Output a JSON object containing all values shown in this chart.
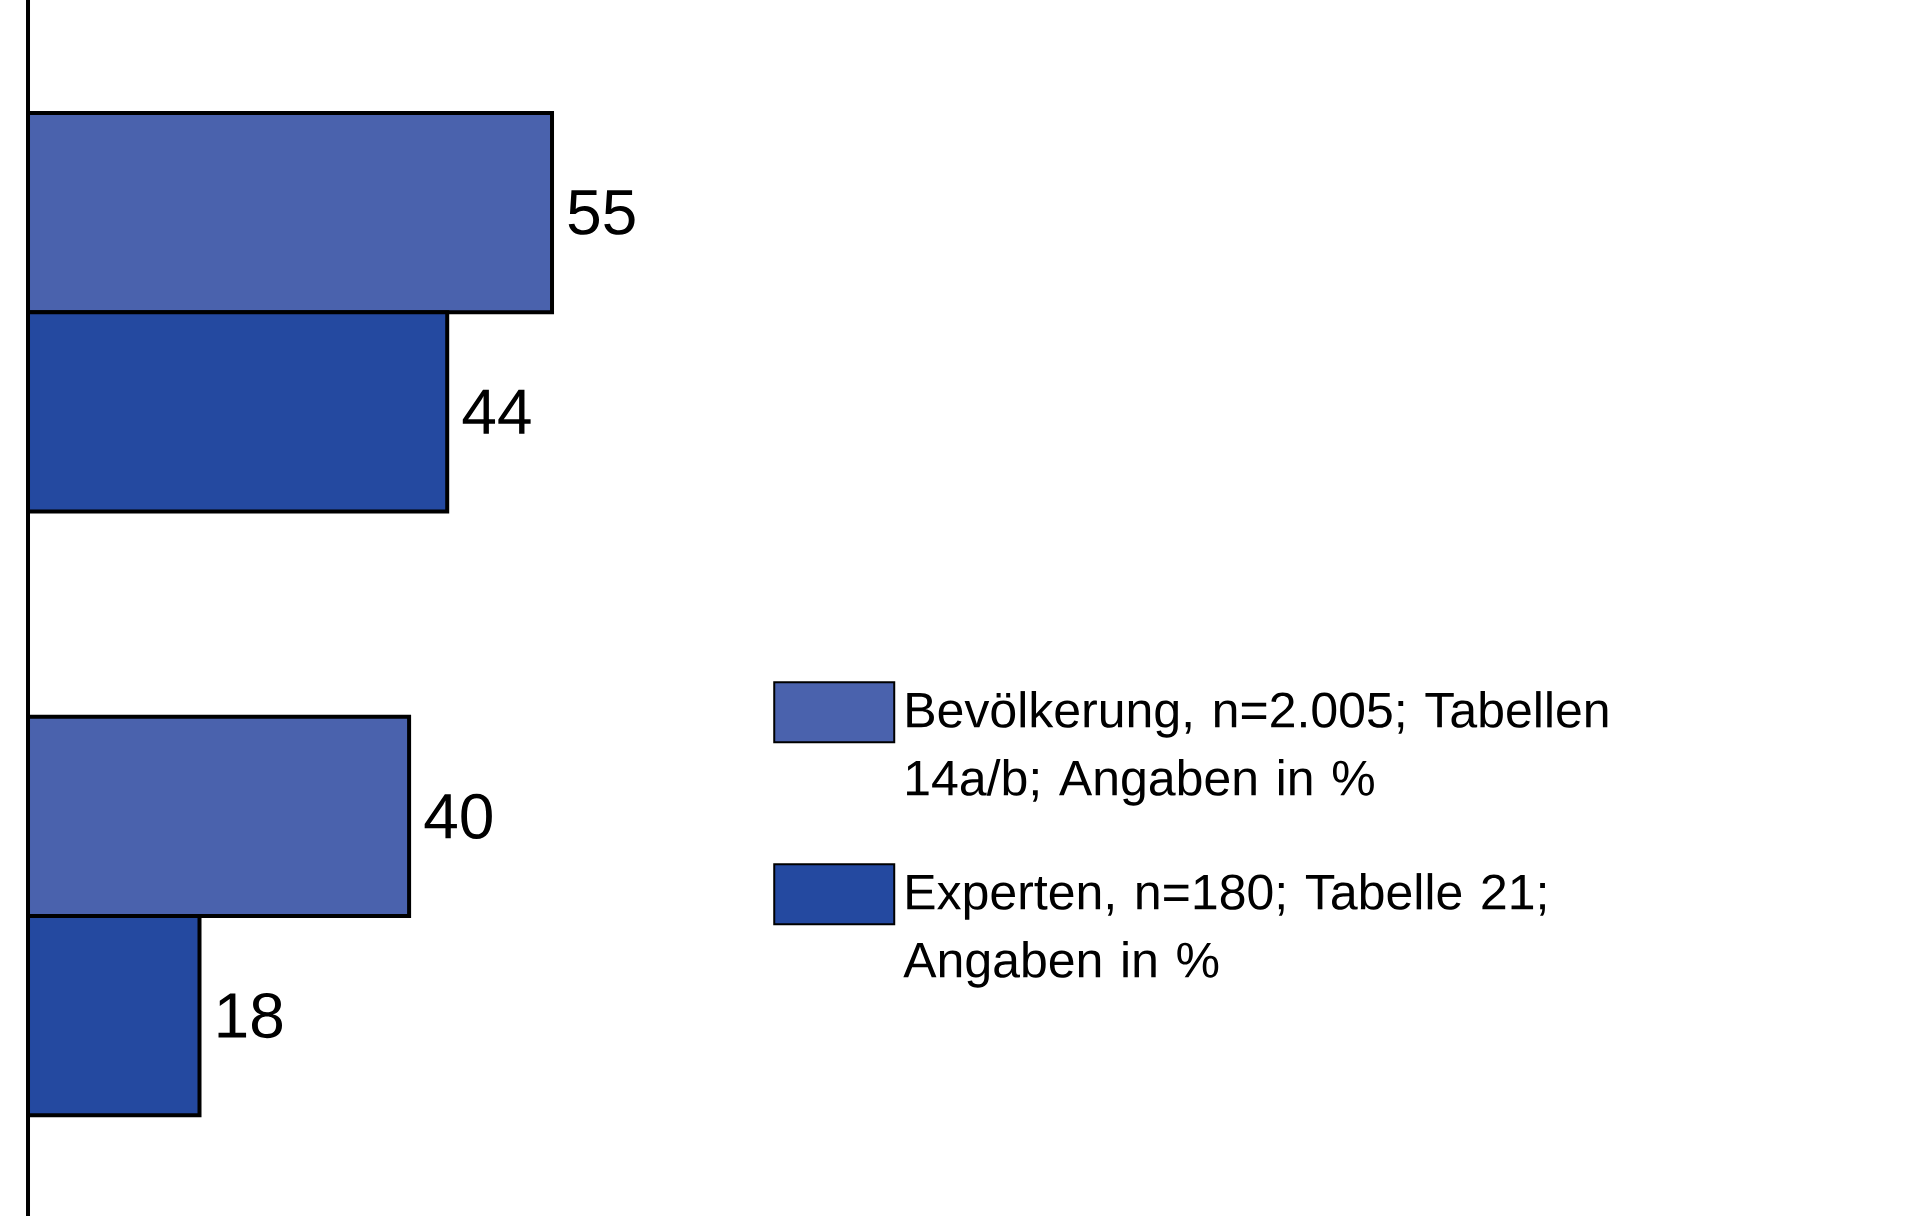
{
  "chart_data": {
    "type": "bar",
    "orientation": "horizontal",
    "categories": [
      null,
      null
    ],
    "series": [
      {
        "name": "Bevölkerung, n=2.005; Tabellen 14a/b; Angaben in %",
        "color": "#4a62ad",
        "values": [
          55,
          40
        ]
      },
      {
        "name": "Experten, n=180; Tabelle 21; Angaben in %",
        "color": "#2449a0",
        "values": [
          44,
          18
        ]
      }
    ],
    "data_labels": true,
    "legend": "bottom right"
  }
}
